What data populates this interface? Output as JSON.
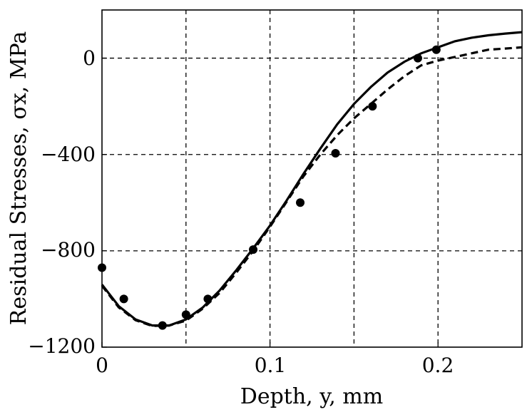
{
  "chart_data": {
    "type": "line",
    "xlabel": "Depth, y, mm",
    "ylabel": "Residual Stresses, σx, MPa",
    "xlim": [
      0,
      0.25
    ],
    "ylim": [
      -1200,
      200
    ],
    "x_ticks": [
      0,
      0.1,
      0.2
    ],
    "x_tick_labels": [
      "0",
      "0.1",
      "0.2"
    ],
    "y_ticks": [
      0,
      -400,
      -800,
      -1200
    ],
    "y_tick_labels": [
      "0",
      "−400",
      "−800",
      "−1200"
    ],
    "x_grid": [
      0.05,
      0.1,
      0.15,
      0.2
    ],
    "y_grid": [
      0,
      -400,
      -800
    ],
    "grid": true,
    "series": [
      {
        "style": "solid",
        "x": [
          0,
          0.01,
          0.02,
          0.03,
          0.04,
          0.05,
          0.06,
          0.07,
          0.08,
          0.09,
          0.1,
          0.11,
          0.12,
          0.13,
          0.14,
          0.15,
          0.16,
          0.17,
          0.18,
          0.19,
          0.2,
          0.21,
          0.22,
          0.23,
          0.24,
          0.25
        ],
        "values": [
          -940,
          -1030,
          -1085,
          -1110,
          -1110,
          -1085,
          -1035,
          -965,
          -880,
          -790,
          -695,
          -590,
          -480,
          -375,
          -275,
          -190,
          -120,
          -60,
          -15,
          20,
          45,
          70,
          85,
          95,
          102,
          108
        ]
      },
      {
        "style": "dashed",
        "x": [
          0,
          0.01,
          0.02,
          0.03,
          0.04,
          0.05,
          0.06,
          0.07,
          0.08,
          0.09,
          0.1,
          0.11,
          0.12,
          0.13,
          0.14,
          0.15,
          0.16,
          0.17,
          0.18,
          0.19,
          0.2,
          0.21,
          0.22,
          0.23,
          0.24,
          0.25
        ],
        "values": [
          -945,
          -1035,
          -1088,
          -1112,
          -1110,
          -1090,
          -1040,
          -975,
          -890,
          -800,
          -700,
          -595,
          -490,
          -400,
          -320,
          -250,
          -190,
          -130,
          -75,
          -30,
          -10,
          5,
          20,
          35,
          40,
          45
        ]
      },
      {
        "style": "markers",
        "x": [
          0,
          0.013,
          0.036,
          0.05,
          0.063,
          0.09,
          0.118,
          0.139,
          0.161,
          0.188,
          0.199
        ],
        "values": [
          -870,
          -1000,
          -1110,
          -1065,
          -1000,
          -795,
          -600,
          -395,
          -200,
          0,
          35
        ]
      }
    ]
  }
}
